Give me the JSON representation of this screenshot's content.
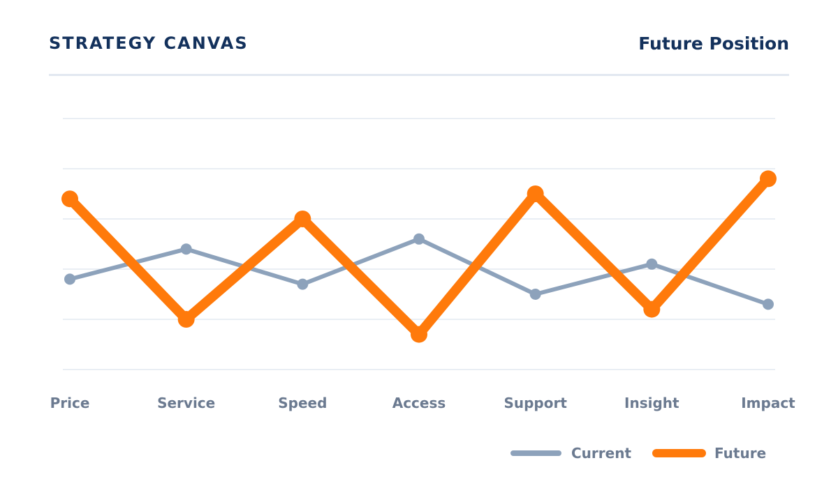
{
  "header": {
    "title": "STRATEGY CANVAS",
    "subtitle": "Future Position"
  },
  "colors": {
    "title": "#13315c",
    "gridline": "#e2e8f0",
    "label": "#6b7a90",
    "current": "#8da2bb",
    "future": "#ff7a0b"
  },
  "chart_data": {
    "type": "line",
    "categories": [
      "Price",
      "Service",
      "Speed",
      "Access",
      "Support",
      "Insight",
      "Impact"
    ],
    "ylim": [
      0,
      5
    ],
    "grid": true,
    "legend_position": "bottom-right",
    "series": [
      {
        "name": "Current",
        "values": [
          1.8,
          2.4,
          1.7,
          2.6,
          1.5,
          2.1,
          1.3
        ]
      },
      {
        "name": "Future",
        "values": [
          3.4,
          1.0,
          3.0,
          0.7,
          3.5,
          1.2,
          3.8
        ]
      }
    ]
  }
}
